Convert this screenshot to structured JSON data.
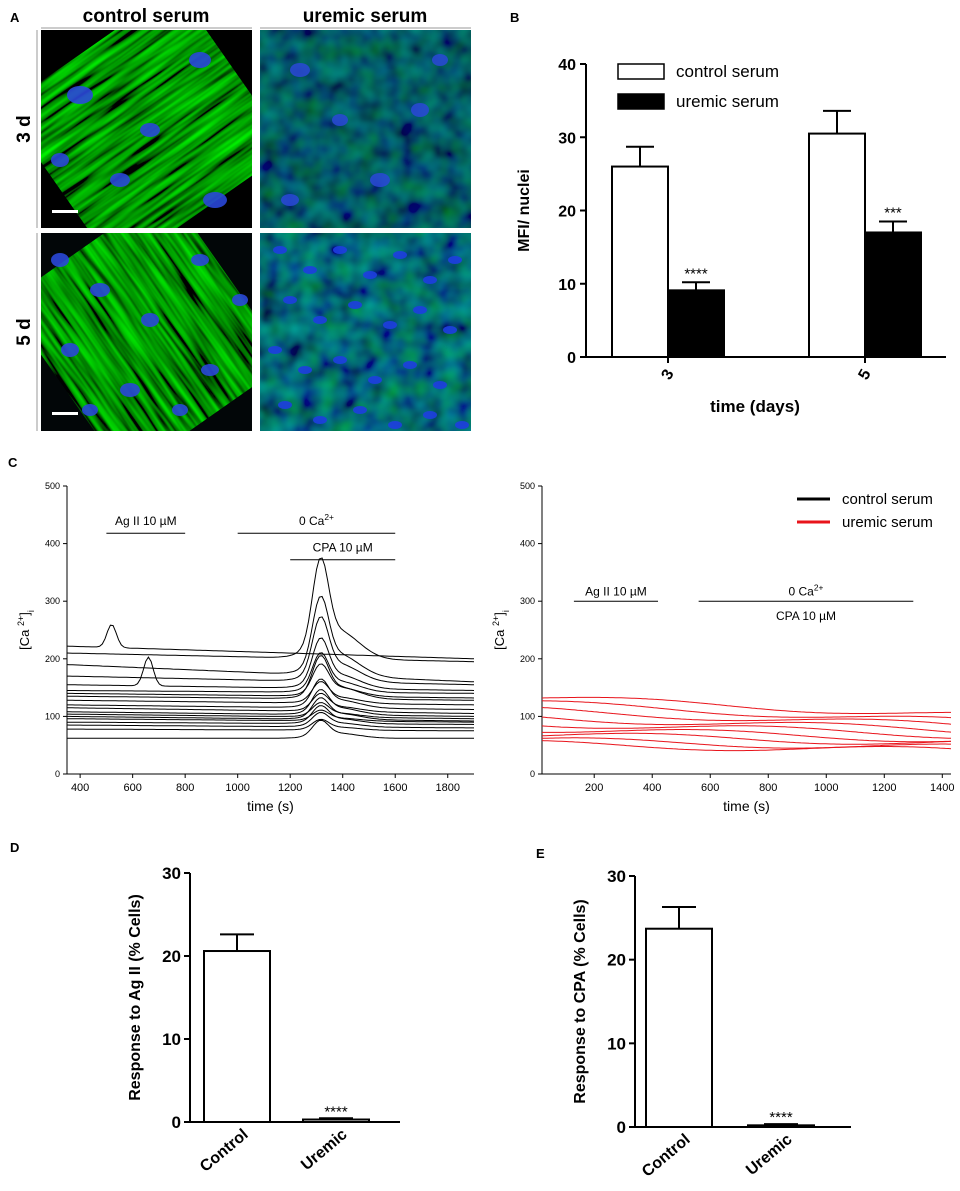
{
  "panels": {
    "A": {
      "label": "A",
      "columns": [
        "control serum",
        "uremic serum"
      ],
      "rows": [
        "3 d",
        "5 d"
      ]
    },
    "B": {
      "label": "B"
    },
    "C": {
      "label": "C"
    },
    "D": {
      "label": "D"
    },
    "E": {
      "label": "E"
    }
  },
  "chart_data": [
    {
      "panel": "B",
      "type": "bar",
      "categories": [
        "3",
        "5"
      ],
      "series": [
        {
          "name": "control serum",
          "values": [
            26,
            30.5
          ],
          "errors": [
            2.7,
            3.1
          ],
          "color": "#ffffff"
        },
        {
          "name": "uremic serum",
          "values": [
            9.1,
            17
          ],
          "errors": [
            1.1,
            1.5
          ],
          "color": "#000000",
          "annotations": [
            "****",
            "***"
          ]
        }
      ],
      "xlabel": "time (days)",
      "ylabel": "MFI/ nuclei",
      "ylim": [
        0,
        40
      ],
      "yticks": [
        0,
        10,
        20,
        30,
        40
      ],
      "legend": "top-left"
    },
    {
      "panel": "C-left",
      "type": "line",
      "xlabel": "time (s)",
      "ylabel": "[Ca 2+]i",
      "xlim": [
        350,
        1900
      ],
      "ylim": [
        0,
        500
      ],
      "xticks": [
        400,
        600,
        800,
        1000,
        1200,
        1400,
        1600,
        1800
      ],
      "yticks": [
        0,
        100,
        200,
        300,
        400,
        500
      ],
      "annotations": [
        {
          "text": "Ag II 10 µM",
          "x_start": 500,
          "x_end": 800
        },
        {
          "text": "0 Ca2+",
          "x_start": 1000,
          "x_end": 1600
        },
        {
          "text": "CPA 10 µM",
          "x_start": 1200,
          "x_end": 1600
        }
      ],
      "color": "#000000",
      "series": [
        {
          "base": 222,
          "end": 200,
          "peak": 0,
          "ag": 40
        },
        {
          "base": 210,
          "end": 195,
          "peak": 140,
          "ag": 0
        },
        {
          "base": 190,
          "end": 160,
          "peak": 110,
          "ag": 0
        },
        {
          "base": 170,
          "end": 155,
          "peak": 90,
          "ag": 0
        },
        {
          "base": 155,
          "end": 145,
          "peak": 70,
          "ag": 50
        },
        {
          "base": 145,
          "end": 140,
          "peak": 55,
          "ag": 0
        },
        {
          "base": 140,
          "end": 132,
          "peak": 45,
          "ag": 0
        },
        {
          "base": 135,
          "end": 128,
          "peak": 60,
          "ag": 0
        },
        {
          "base": 128,
          "end": 120,
          "peak": 30,
          "ag": 0
        },
        {
          "base": 120,
          "end": 112,
          "peak": 40,
          "ag": 0
        },
        {
          "base": 115,
          "end": 105,
          "peak": 25,
          "ag": 0
        },
        {
          "base": 108,
          "end": 100,
          "peak": 35,
          "ag": 0
        },
        {
          "base": 104,
          "end": 96,
          "peak": 20,
          "ag": 0
        },
        {
          "base": 100,
          "end": 92,
          "peak": 30,
          "ag": 0
        },
        {
          "base": 96,
          "end": 90,
          "peak": 15,
          "ag": 0
        },
        {
          "base": 90,
          "end": 86,
          "peak": 25,
          "ag": 0
        },
        {
          "base": 85,
          "end": 80,
          "peak": 20,
          "ag": 0
        },
        {
          "base": 78,
          "end": 75,
          "peak": 15,
          "ag": 0
        },
        {
          "base": 62,
          "end": 62,
          "peak": 25,
          "ag": 0
        }
      ]
    },
    {
      "panel": "C-right",
      "type": "line",
      "xlabel": "time (s)",
      "ylabel": "[Ca 2+]i",
      "xlim": [
        20,
        1430
      ],
      "ylim": [
        0,
        500
      ],
      "xticks": [
        200,
        400,
        600,
        800,
        1000,
        1200,
        1400
      ],
      "yticks": [
        0,
        100,
        200,
        300,
        400,
        500
      ],
      "annotations": [
        {
          "text": "Ag II 10 µM",
          "x_start": 130,
          "x_end": 420
        },
        {
          "text": "0 Ca2+",
          "x_start": 560,
          "x_end": 1300
        },
        {
          "text": "CPA 10 µM",
          "x_start": 560,
          "x_end": 1300
        }
      ],
      "legend": [
        {
          "name": "control serum",
          "color": "#000000"
        },
        {
          "name": "uremic serum",
          "color": "#e8141b"
        }
      ],
      "color": "#e8141b",
      "series": [
        {
          "start": 132,
          "end": 103
        },
        {
          "start": 122,
          "end": 92
        },
        {
          "start": 110,
          "end": 84
        },
        {
          "start": 98,
          "end": 76
        },
        {
          "start": 88,
          "end": 68
        },
        {
          "start": 78,
          "end": 60
        },
        {
          "start": 68,
          "end": 54
        },
        {
          "start": 58,
          "end": 46
        },
        {
          "start": 52,
          "end": 40
        }
      ]
    },
    {
      "panel": "D",
      "type": "bar",
      "categories": [
        "Control",
        "Uremic"
      ],
      "values": [
        20.6,
        0.3
      ],
      "errors": [
        2.0,
        0.15
      ],
      "annotations": [
        "",
        "****"
      ],
      "ylabel": "Response to Ag II (% Cells)",
      "ylim": [
        0,
        30
      ],
      "yticks": [
        0,
        10,
        20,
        30
      ]
    },
    {
      "panel": "E",
      "type": "bar",
      "categories": [
        "Control",
        "Uremic"
      ],
      "values": [
        23.7,
        0.2
      ],
      "errors": [
        2.6,
        0.15
      ],
      "annotations": [
        "",
        "****"
      ],
      "ylabel": "Response to CPA (% Cells)",
      "ylim": [
        0,
        30
      ],
      "yticks": [
        0,
        10,
        20,
        30
      ]
    }
  ]
}
